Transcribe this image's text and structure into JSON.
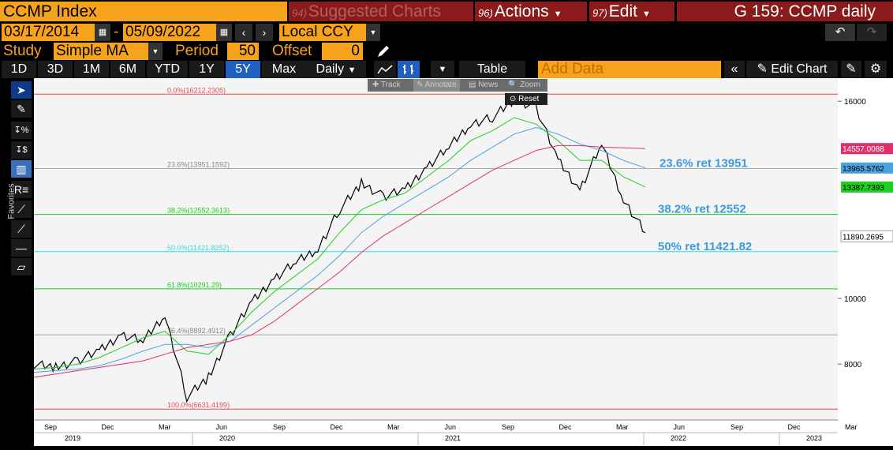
{
  "header": {
    "ticker": "CCMP Index",
    "suggested": "Suggested Charts",
    "suggested_num": "94)",
    "actions": "Actions",
    "actions_num": "96)",
    "edit": "Edit",
    "edit_num": "97)",
    "chart_id": "G 159: CCMP daily"
  },
  "range": {
    "start": "03/17/2014",
    "dash": "-",
    "end": "05/09/2022",
    "currency": "Local CCY"
  },
  "study": {
    "label": "Study",
    "type": "Simple MA",
    "period_label": "Period",
    "period": "50",
    "offset_label": "Offset",
    "offset": "0"
  },
  "toolbar": {
    "periods": [
      "1D",
      "3D",
      "1M",
      "6M",
      "YTD",
      "1Y",
      "5Y",
      "Max"
    ],
    "active_period": "5Y",
    "interval": "Daily",
    "table": "Table",
    "add_data": "Add Data",
    "edit_chart": "Edit Chart"
  },
  "popup": {
    "track": "Track",
    "annotate": "Annotate",
    "news": "News",
    "zoom": "Zoom",
    "reset": "Reset"
  },
  "left_tools": {
    "favorites": "Favorites"
  },
  "colors": {
    "orange": "#f7a21b",
    "red_btn": "#8b1a1a",
    "price": "#000000",
    "ma50": "#22cc22",
    "ma100": "#4aa3df",
    "ma200": "#e0306a",
    "fib_label": "#3b9be0"
  },
  "chart_data": {
    "type": "line",
    "y_ticks": [
      8000,
      10000,
      16000
    ],
    "ylim": [
      6300,
      16700
    ],
    "x_month_labels": [
      "Sep",
      "Dec",
      "Mar",
      "Jun",
      "Sep",
      "Dec",
      "Mar",
      "Jun",
      "Sep",
      "Dec",
      "Mar",
      "Jun",
      "Sep",
      "Dec",
      "Mar"
    ],
    "x_year_labels": [
      "2019",
      "2020",
      "2021",
      "2022",
      "2023"
    ],
    "fib_levels": [
      {
        "label": "0.0%(16212.2305)",
        "value": 16212.2305,
        "color": "#e05050"
      },
      {
        "label": "23.6%(13951.1592)",
        "value": 13951.1592,
        "color": "#aaaaaa"
      },
      {
        "label": "38.2%(12552.3613)",
        "value": 12552.3613,
        "color": "#22cc22"
      },
      {
        "label": "50.0%(11421.8252)",
        "value": 11421.8252,
        "color": "#33dddd"
      },
      {
        "label": "61.8%(10291.29)",
        "value": 10291.29,
        "color": "#22cc22"
      },
      {
        "label": "76.4%(8892.4912)",
        "value": 8892.4912,
        "color": "#aaaaaa"
      },
      {
        "label": "100.0%(6631.4199)",
        "value": 6631.4199,
        "color": "#e05050"
      }
    ],
    "annotations": [
      {
        "text": "23.6% ret 13951",
        "value": 13951
      },
      {
        "text": "38.2% ret 12552",
        "value": 12552
      },
      {
        "text": "50% ret 11421.82",
        "value": 11421.82
      }
    ],
    "right_tags": [
      {
        "text": "14557.0088",
        "value": 14557.0088,
        "bg": "#e0306a",
        "fg": "#ffffff"
      },
      {
        "text": "13965.5762",
        "value": 13965.5762,
        "bg": "#4aa3df",
        "fg": "#000000"
      },
      {
        "text": "13387.7393",
        "value": 13387.7393,
        "bg": "#22cc22",
        "fg": "#000000"
      },
      {
        "text": "11890.2695",
        "value": 11890.2695,
        "bg": "#ffffff",
        "fg": "#000000"
      }
    ],
    "series": [
      {
        "values": [
          8000,
          7900,
          8100,
          8400,
          8900,
          8700,
          9500,
          7000,
          7600,
          8900,
          9900,
          10600,
          11100,
          11500,
          12700,
          13500,
          13100,
          13300,
          14000,
          14600,
          15300,
          15500,
          16050,
          15800,
          14200,
          13300,
          14700,
          13000,
          12000
        ]
      },
      {
        "values": [
          7850,
          7900,
          8000,
          8200,
          8500,
          8800,
          9000,
          8400,
          8300,
          8900,
          9600,
          10200,
          10700,
          11200,
          12000,
          12700,
          13000,
          13200,
          13700,
          14200,
          14800,
          15100,
          15500,
          15300,
          14800,
          14200,
          14200,
          13700,
          13390
        ]
      },
      {
        "values": [
          7750,
          7800,
          7850,
          7950,
          8150,
          8400,
          8600,
          8600,
          8500,
          8700,
          9200,
          9700,
          10200,
          10700,
          11300,
          12000,
          12500,
          12900,
          13300,
          13700,
          14200,
          14600,
          15000,
          15200,
          15000,
          14700,
          14500,
          14200,
          13970
        ]
      },
      {
        "values": [
          7600,
          7700,
          7800,
          7900,
          8000,
          8100,
          8300,
          8500,
          8600,
          8700,
          8900,
          9300,
          9800,
          10300,
          10800,
          11400,
          11900,
          12300,
          12700,
          13100,
          13500,
          13900,
          14200,
          14500,
          14650,
          14650,
          14600,
          14580,
          14557
        ]
      }
    ]
  }
}
